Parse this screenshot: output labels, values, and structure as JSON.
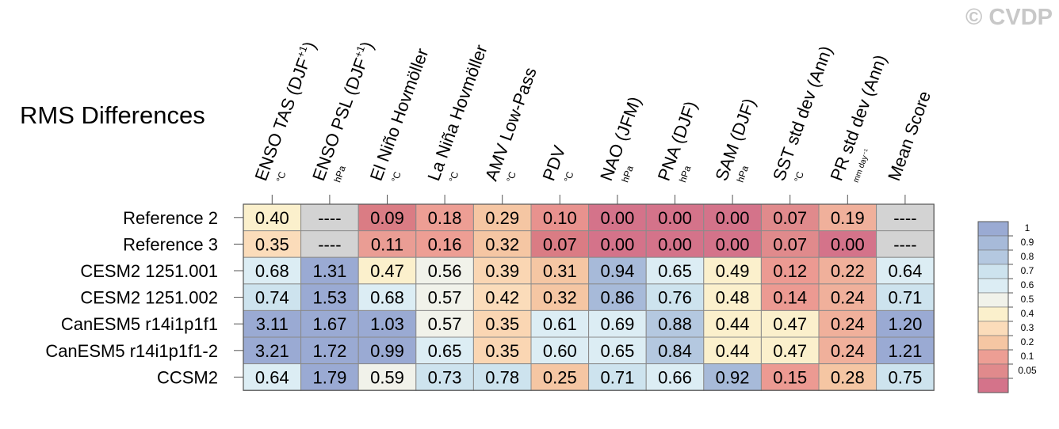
{
  "watermark": "© CVDP",
  "title": "RMS Differences",
  "chart_data": {
    "type": "heatmap",
    "title": "RMS Differences",
    "columns": [
      {
        "label": "ENSO TAS (DJF",
        "sup": "+1",
        "close": ")",
        "unit": "°C"
      },
      {
        "label": "ENSO PSL (DJF",
        "sup": "+1",
        "close": ")",
        "unit": "hPa"
      },
      {
        "label": "El Niño Hovmöller",
        "sup": "",
        "close": "",
        "unit": "°C"
      },
      {
        "label": "La Niña Hovmöller",
        "sup": "",
        "close": "",
        "unit": "°C"
      },
      {
        "label": "AMV Low-Pass",
        "sup": "",
        "close": "",
        "unit": "°C"
      },
      {
        "label": "PDV",
        "sup": "",
        "close": "",
        "unit": "°C"
      },
      {
        "label": "NAO (JFM)",
        "sup": "",
        "close": "",
        "unit": "hPa"
      },
      {
        "label": "PNA (DJF)",
        "sup": "",
        "close": "",
        "unit": "hPa"
      },
      {
        "label": "SAM (DJF)",
        "sup": "",
        "close": "",
        "unit": "hPa"
      },
      {
        "label": "SST std dev (Ann)",
        "sup": "",
        "close": "",
        "unit": "°C"
      },
      {
        "label": "PR std dev (Ann)",
        "sup": "",
        "close": "",
        "unit": "mm day⁻¹"
      },
      {
        "label": "Mean Score",
        "sup": "",
        "close": "",
        "unit": ""
      }
    ],
    "rows": [
      "Reference 2",
      "Reference 3",
      "CESM2 1251.001",
      "CESM2 1251.002",
      "CanESM5 r14i1p1f1",
      "CanESM5 r14i1p1f1-2",
      "CCSM2"
    ],
    "values": [
      [
        "0.40",
        "----",
        "0.09",
        "0.18",
        "0.29",
        "0.10",
        "0.00",
        "0.00",
        "0.00",
        "0.07",
        "0.19",
        "----"
      ],
      [
        "0.35",
        "----",
        "0.11",
        "0.16",
        "0.32",
        "0.07",
        "0.00",
        "0.00",
        "0.00",
        "0.07",
        "0.00",
        "----"
      ],
      [
        "0.68",
        "1.31",
        "0.47",
        "0.56",
        "0.39",
        "0.31",
        "0.94",
        "0.65",
        "0.49",
        "0.12",
        "0.22",
        "0.64"
      ],
      [
        "0.74",
        "1.53",
        "0.68",
        "0.57",
        "0.42",
        "0.32",
        "0.86",
        "0.76",
        "0.48",
        "0.14",
        "0.24",
        "0.71"
      ],
      [
        "3.11",
        "1.67",
        "1.03",
        "0.57",
        "0.35",
        "0.61",
        "0.69",
        "0.88",
        "0.44",
        "0.47",
        "0.24",
        "1.20"
      ],
      [
        "3.21",
        "1.72",
        "0.99",
        "0.65",
        "0.35",
        "0.60",
        "0.65",
        "0.84",
        "0.44",
        "0.47",
        "0.24",
        "1.21"
      ],
      [
        "0.64",
        "1.79",
        "0.59",
        "0.73",
        "0.78",
        "0.25",
        "0.71",
        "0.66",
        "0.92",
        "0.15",
        "0.28",
        "0.75"
      ]
    ],
    "cell_colors": [
      [
        "#fbf0cc",
        "#d3d3d3",
        "#da7c84",
        "#ed9e94",
        "#f5c6a3",
        "#e8928e",
        "#d4738a",
        "#d4738a",
        "#d4738a",
        "#e08a8c",
        "#f0b09b",
        "#d3d3d3"
      ],
      [
        "#fbdcba",
        "#d3d3d3",
        "#ea9d94",
        "#ed9e94",
        "#f5c6a3",
        "#da7c84",
        "#d4738a",
        "#d4738a",
        "#d4738a",
        "#e08a8c",
        "#d4738a",
        "#d3d3d3"
      ],
      [
        "#dcedf4",
        "#9aaad3",
        "#fbf0cc",
        "#f1f2ea",
        "#fad6b3",
        "#f5c6a3",
        "#a7bad9",
        "#dcedf4",
        "#fbf0cc",
        "#ec9a92",
        "#f0b09b",
        "#dcedf4"
      ],
      [
        "#cde3ee",
        "#9aaad3",
        "#dcedf4",
        "#f1f2ea",
        "#fbdcba",
        "#f5c6a3",
        "#a7bad9",
        "#cde3ee",
        "#fbf0cc",
        "#ec9a92",
        "#f0b09b",
        "#cde3ee"
      ],
      [
        "#9aaad3",
        "#9aaad3",
        "#9aaad3",
        "#f1f2ea",
        "#fad6b3",
        "#dcedf4",
        "#dcedf4",
        "#b4c8e0",
        "#fbf0cc",
        "#fbf0cc",
        "#f0b09b",
        "#9aaad3"
      ],
      [
        "#9aaad3",
        "#9aaad3",
        "#9aaad3",
        "#dcedf4",
        "#fad6b3",
        "#dcedf4",
        "#dcedf4",
        "#b4c8e0",
        "#fbf0cc",
        "#fbf0cc",
        "#f0b09b",
        "#9aaad3"
      ],
      [
        "#dcedf4",
        "#9aaad3",
        "#f1f2ea",
        "#cde3ee",
        "#cde3ee",
        "#f5c6a3",
        "#cde3ee",
        "#dcedf4",
        "#a7bad9",
        "#ec9a92",
        "#f5c6a3",
        "#cde3ee"
      ]
    ],
    "legend": {
      "labels": [
        "1",
        "0.9",
        "0.8",
        "0.7",
        "0.6",
        "0.5",
        "0.4",
        "0.3",
        "0.2",
        "0.1",
        "0.05"
      ],
      "colors": [
        "#9aaad3",
        "#a7bad9",
        "#b4c8e0",
        "#cde3ee",
        "#dcedf4",
        "#f1f2ea",
        "#fbf0cc",
        "#fbdcba",
        "#f5c6a3",
        "#ed9e94",
        "#e08a8c",
        "#d4738a"
      ]
    }
  }
}
